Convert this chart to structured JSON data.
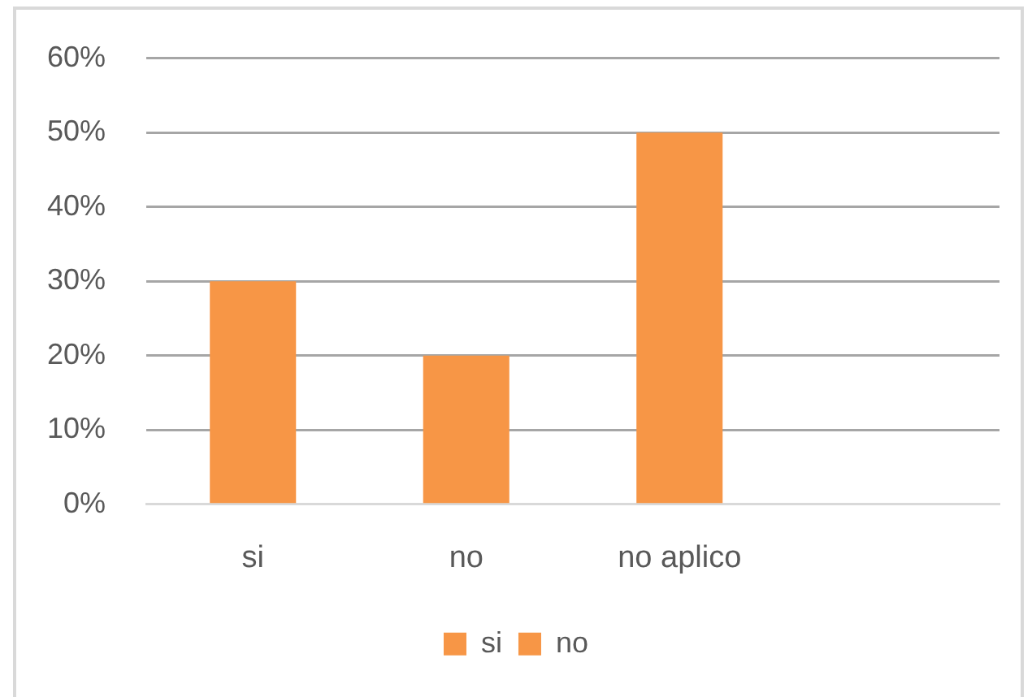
{
  "chart_data": {
    "type": "bar",
    "categories": [
      "si",
      "no",
      "no aplico",
      null
    ],
    "series": [
      {
        "name": "si",
        "color": "#f79646",
        "values": [
          30,
          20,
          50,
          null
        ]
      },
      {
        "name": "no",
        "color": "#f79646",
        "values": [
          null,
          null,
          null,
          null
        ]
      }
    ],
    "ylim": [
      0,
      60
    ],
    "yticks": [
      {
        "value": 0,
        "label": "0%"
      },
      {
        "value": 10,
        "label": "10%"
      },
      {
        "value": 20,
        "label": "20%"
      },
      {
        "value": 30,
        "label": "30%"
      },
      {
        "value": 40,
        "label": "40%"
      },
      {
        "value": 50,
        "label": "50%"
      },
      {
        "value": 60,
        "label": "60%"
      }
    ],
    "grid": "y",
    "legend": "bottom"
  }
}
